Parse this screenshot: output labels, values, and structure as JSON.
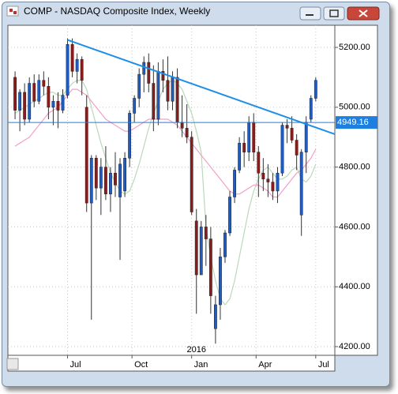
{
  "chart_data": {
    "type": "candlestick",
    "title": "COMP - NASDAQ Composite Index, Weekly",
    "open": [
      5100,
      4990,
      5050,
      4960,
      5080,
      5020,
      5090,
      5070,
      5000,
      5020,
      4990,
      5040,
      5210,
      5120,
      5160,
      5000,
      4680,
      4830,
      4730,
      4800,
      4710,
      4780,
      4700,
      4720,
      4830,
      4980,
      5030,
      5110,
      5150,
      5080,
      4960,
      5120,
      5090,
      5020,
      5100,
      4950,
      4930,
      4900,
      4620,
      4440,
      4600,
      4560,
      4260,
      4340,
      4500,
      4580,
      4700,
      4790,
      4880,
      4850,
      4950,
      4850,
      4780,
      4760,
      4750,
      4720,
      4780,
      4940,
      4930,
      4890,
      4640,
      4850,
      4960,
      5030
    ],
    "high": [
      5120,
      5060,
      5080,
      5100,
      5110,
      5110,
      5120,
      5100,
      5040,
      5050,
      5060,
      5230,
      5230,
      5180,
      5170,
      5040,
      4840,
      4840,
      4830,
      4870,
      4800,
      4850,
      4830,
      4850,
      4990,
      5040,
      5130,
      5170,
      5180,
      5140,
      5150,
      5160,
      5170,
      5120,
      5130,
      5040,
      5010,
      4920,
      4660,
      4620,
      4640,
      4600,
      4370,
      4530,
      4590,
      4720,
      4800,
      4900,
      4920,
      4970,
      4980,
      4870,
      4830,
      4810,
      4780,
      4800,
      4950,
      4960,
      4970,
      4910,
      4860,
      4970,
      5040,
      5100
    ],
    "low": [
      4960,
      4920,
      4940,
      4950,
      5000,
      5010,
      5040,
      4960,
      4940,
      4930,
      4980,
      5030,
      5100,
      5080,
      5040,
      4650,
      4290,
      4690,
      4640,
      4690,
      4650,
      4700,
      4490,
      4700,
      4800,
      4950,
      5000,
      5050,
      5050,
      4920,
      4940,
      5050,
      4990,
      4990,
      4930,
      4900,
      4880,
      4640,
      4310,
      4440,
      4470,
      4310,
      4210,
      4290,
      4480,
      4570,
      4680,
      4780,
      4800,
      4820,
      4820,
      4700,
      4720,
      4700,
      4690,
      4680,
      4770,
      4880,
      4880,
      4790,
      4570,
      4780,
      4950,
      5020
    ],
    "close": [
      4990,
      5050,
      4960,
      5080,
      5020,
      5090,
      5070,
      5000,
      5020,
      4990,
      5040,
      5210,
      5120,
      5160,
      5090,
      4680,
      4830,
      4730,
      4800,
      4710,
      4780,
      4740,
      4810,
      4830,
      4980,
      5030,
      5110,
      5150,
      5080,
      4960,
      5120,
      5090,
      5020,
      5100,
      4950,
      4930,
      4900,
      4650,
      4440,
      4600,
      4560,
      4370,
      4340,
      4500,
      4580,
      4700,
      4790,
      4880,
      4850,
      4950,
      4850,
      4780,
      4760,
      4750,
      4720,
      4780,
      4940,
      4930,
      4890,
      4840,
      4850,
      4950,
      5030,
      5090
    ],
    "up_color": "#1f5cc4",
    "down_color": "#8b1c1c",
    "series": [
      {
        "color": "#b9d9b9",
        "values": [
          4980,
          4990,
          5000,
          5010,
          5020,
          5030,
          5040,
          5050,
          5050,
          5040,
          5040,
          5060,
          5080,
          5090,
          5090,
          5060,
          5000,
          4940,
          4880,
          4830,
          4780,
          4750,
          4720,
          4710,
          4720,
          4760,
          4810,
          4870,
          4930,
          4980,
          5020,
          5060,
          5080,
          5090,
          5080,
          5060,
          5020,
          4980,
          4920,
          4850,
          4600,
          4500,
          4420,
          4360,
          4340,
          4360,
          4420,
          4500,
          4580,
          4660,
          4720,
          4760,
          4790,
          4800,
          4780,
          4760,
          4760,
          4770,
          4790,
          4800,
          4760,
          4750,
          4770,
          4810
        ]
      },
      {
        "color": "#f0a0c8",
        "values": [
          4870,
          4880,
          4890,
          4900,
          4920,
          4940,
          4960,
          4980,
          4990,
          5000,
          5020,
          5040,
          5060,
          5060,
          5050,
          5040,
          5020,
          5000,
          4980,
          4960,
          4950,
          4940,
          4930,
          4920,
          4920,
          4930,
          4940,
          4950,
          4960,
          4960,
          4960,
          4960,
          4960,
          4950,
          4940,
          4920,
          4900,
          4880,
          4860,
          4840,
          4820,
          4800,
          4780,
          4760,
          4740,
          4720,
          4710,
          4710,
          4720,
          4730,
          4740,
          4740,
          4730,
          4720,
          4700,
          4700,
          4720,
          4740,
          4760,
          4780,
          4790,
          4810,
          4830,
          4860
        ]
      }
    ],
    "trendline": {
      "color": "#1e8fe8",
      "points": [
        [
          11,
          5225
        ],
        [
          67,
          4910
        ]
      ]
    },
    "level": 4949.16,
    "level_color": "#1e7fe0",
    "xlim": [
      -1.5,
      67
    ],
    "xticks": [
      {
        "value": 11,
        "label": "Jul"
      },
      {
        "value": 24.5,
        "label": "Oct"
      },
      {
        "value": 37,
        "label": "Jan"
      },
      {
        "value": 50.5,
        "label": "Apr"
      },
      {
        "value": 63,
        "label": "Jul"
      }
    ],
    "year_labels": [
      {
        "value": 38,
        "label": "2016"
      }
    ],
    "ylim": [
      4171,
      5274
    ],
    "yticks": [
      {
        "value": 4200,
        "label": "4200.00"
      },
      {
        "value": 4400,
        "label": "4400.00"
      },
      {
        "value": 4600,
        "label": "4600.00"
      },
      {
        "value": 4800,
        "label": "4800.00"
      },
      {
        "value": 5000,
        "label": "5000.00"
      },
      {
        "value": 5200,
        "label": "5200.00"
      }
    ],
    "grid": true
  }
}
